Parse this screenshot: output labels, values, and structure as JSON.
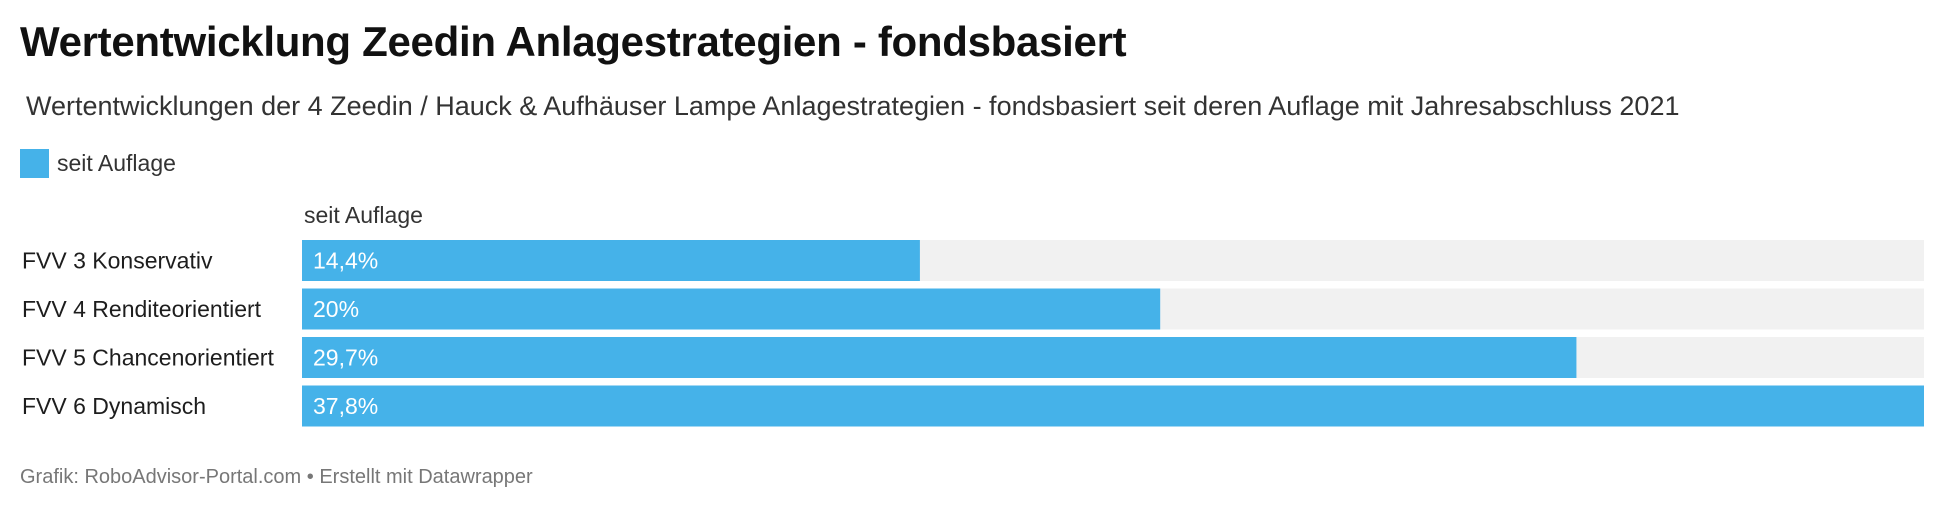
{
  "header": {
    "title": "Wertentwicklung Zeedin Anlagestrategien - fondsbasiert",
    "subtitle": "Wertentwicklungen der 4 Zeedin / Hauck & Aufhäuser Lampe Anlagestrategien  - fondsbasiert seit deren Auflage mit Jahresabschluss 2021"
  },
  "legend": {
    "label": "seit Auflage",
    "color": "#45b2e9"
  },
  "column_header": "seit Auflage",
  "footer": {
    "text": "Grafik: RoboAdvisor-Portal.com • Erstellt mit Datawrapper"
  },
  "colors": {
    "bar": "#45b2e9",
    "track": "#f1f1f1",
    "value_text": "#ffffff"
  },
  "chart_data": {
    "type": "bar",
    "orientation": "horizontal",
    "categories": [
      "FVV 3 Konservativ",
      "FVV 4 Renditeorientiert",
      "FVV 5 Chancenorientiert",
      "FVV 6 Dynamisch"
    ],
    "series": [
      {
        "name": "seit Auflage",
        "values": [
          14.4,
          20,
          29.7,
          37.8
        ]
      }
    ],
    "value_labels": [
      "14,4%",
      "20%",
      "29,7%",
      "37,8%"
    ],
    "unit": "%",
    "xlim": [
      0,
      37.8
    ],
    "title": "Wertentwicklung Zeedin Anlagestrategien - fondsbasiert",
    "xlabel": "",
    "ylabel": "",
    "grid": false,
    "legend_position": "top-left"
  }
}
